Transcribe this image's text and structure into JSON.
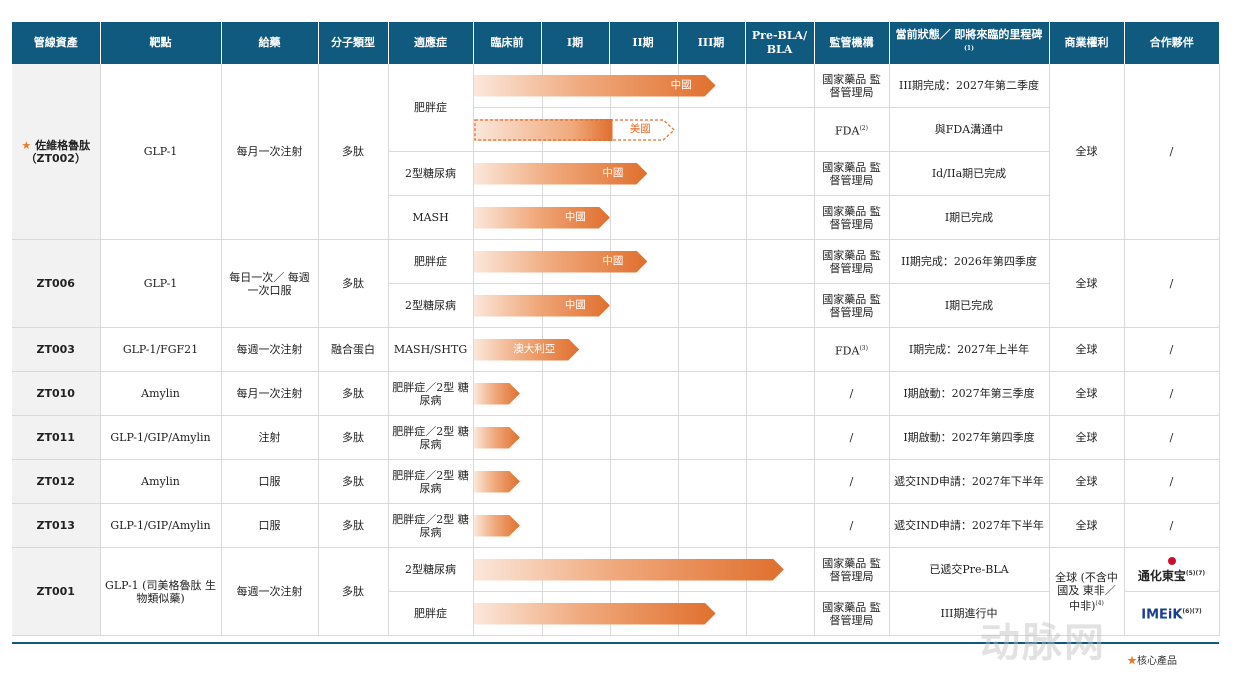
{
  "headers": {
    "asset": "管線資產",
    "target": "靶點",
    "dosing": "給藥",
    "modality": "分子類型",
    "indication": "適應症",
    "preclinical": "臨床前",
    "phase1": "I期",
    "phase2": "II期",
    "phase3": "III期",
    "prebla": "Pre-BLA/ BLA",
    "regulator": "監管機構",
    "status": "當前狀態／ 即將來臨的里程碑",
    "status_sup": "(1)",
    "rights": "商業權利",
    "partner": "合作夥伴"
  },
  "rows": {
    "zt002": {
      "asset_star": "★",
      "asset": "佐維格魯肽（ZT002）",
      "target": "GLP-1",
      "dosing": "每月一次注射",
      "modality": "多肽",
      "rights": "全球",
      "partner": "/",
      "ind": [
        {
          "indication": "肥胖症",
          "bar_label": "中國",
          "stage": 3.55,
          "regulator": "國家藥品 監督管理局",
          "status": "III期完成：2027年第二季度"
        },
        {
          "indication": "",
          "bar_label": "美國",
          "stage": 2.95,
          "dashed_from": 2.05,
          "regulator": "FDA",
          "regulator_sup": "(2)",
          "status": "與FDA溝通中"
        },
        {
          "indication": "2型糖尿病",
          "bar_label": "中國",
          "stage": 2.55,
          "regulator": "國家藥品 監督管理局",
          "status": "Id/IIa期已完成"
        },
        {
          "indication": "MASH",
          "bar_label": "中國",
          "stage": 2.0,
          "regulator": "國家藥品 監督管理局",
          "status": "I期已完成"
        }
      ]
    },
    "zt006": {
      "asset": "ZT006",
      "target": "GLP-1",
      "dosing": "每日一次／ 每週一次口服",
      "modality": "多肽",
      "rights": "全球",
      "partner": "/",
      "ind": [
        {
          "indication": "肥胖症",
          "bar_label": "中國",
          "stage": 2.55,
          "regulator": "國家藥品 監督管理局",
          "status": "II期完成：2026年第四季度"
        },
        {
          "indication": "2型糖尿病",
          "bar_label": "中國",
          "stage": 2.0,
          "regulator": "國家藥品 監督管理局",
          "status": "I期已完成"
        }
      ]
    },
    "zt003": {
      "asset": "ZT003",
      "target": "GLP-1/FGF21",
      "dosing": "每週一次注射",
      "modality": "融合蛋白",
      "indication": "MASH/SHTG",
      "bar_label": "澳大利亞",
      "stage": 1.55,
      "regulator": "FDA",
      "regulator_sup": "(3)",
      "status": "I期完成：2027年上半年",
      "rights": "全球",
      "partner": "/"
    },
    "zt010": {
      "asset": "ZT010",
      "target": "Amylin",
      "dosing": "每月一次注射",
      "modality": "多肽",
      "indication": "肥胖症／2型 糖尿病",
      "stage": 0.68,
      "regulator": "/",
      "status": "I期啟動：2027年第三季度",
      "rights": "全球",
      "partner": "/"
    },
    "zt011": {
      "asset": "ZT011",
      "target": "GLP-1/GIP/Amylin",
      "dosing": "注射",
      "modality": "多肽",
      "indication": "肥胖症／2型 糖尿病",
      "stage": 0.68,
      "regulator": "/",
      "status": "I期啟動：2027年第四季度",
      "rights": "全球",
      "partner": "/"
    },
    "zt012": {
      "asset": "ZT012",
      "target": "Amylin",
      "dosing": "口服",
      "modality": "多肽",
      "indication": "肥胖症／2型 糖尿病",
      "stage": 0.68,
      "regulator": "/",
      "status": "遞交IND申請：2027年下半年",
      "rights": "全球",
      "partner": "/"
    },
    "zt013": {
      "asset": "ZT013",
      "target": "GLP-1/GIP/Amylin",
      "dosing": "口服",
      "modality": "多肽",
      "indication": "肥胖症／2型 糖尿病",
      "stage": 0.68,
      "regulator": "/",
      "status": "遞交IND申請：2027年下半年",
      "rights": "全球",
      "partner": "/"
    },
    "zt001": {
      "asset": "ZT001",
      "target": "GLP-1 (司美格魯肽 生物類似藥)",
      "dosing": "每週一次注射",
      "modality": "多肽",
      "rights": "全球 (不含中國及 東非／中非)",
      "rights_sup": "(4)",
      "partner1": "通化東宝",
      "partner1_sup": "(5)(7)",
      "partner2": "IMEiK",
      "partner2_sup": "(6)(7)",
      "ind": [
        {
          "indication": "2型糖尿病",
          "stage": 4.55,
          "regulator": "國家藥品 監督管理局",
          "status": "已遞交Pre-BLA"
        },
        {
          "indication": "肥胖症",
          "stage": 3.55,
          "regulator": "國家藥品 監督管理局",
          "status": "III期進行中"
        }
      ]
    }
  },
  "legend": {
    "star": "★",
    "label": "核心產品"
  },
  "watermark": "动脉网",
  "colors": {
    "header": "#0f5a7e",
    "bar_end": "#e06f2d",
    "star": "#e87a2f"
  }
}
